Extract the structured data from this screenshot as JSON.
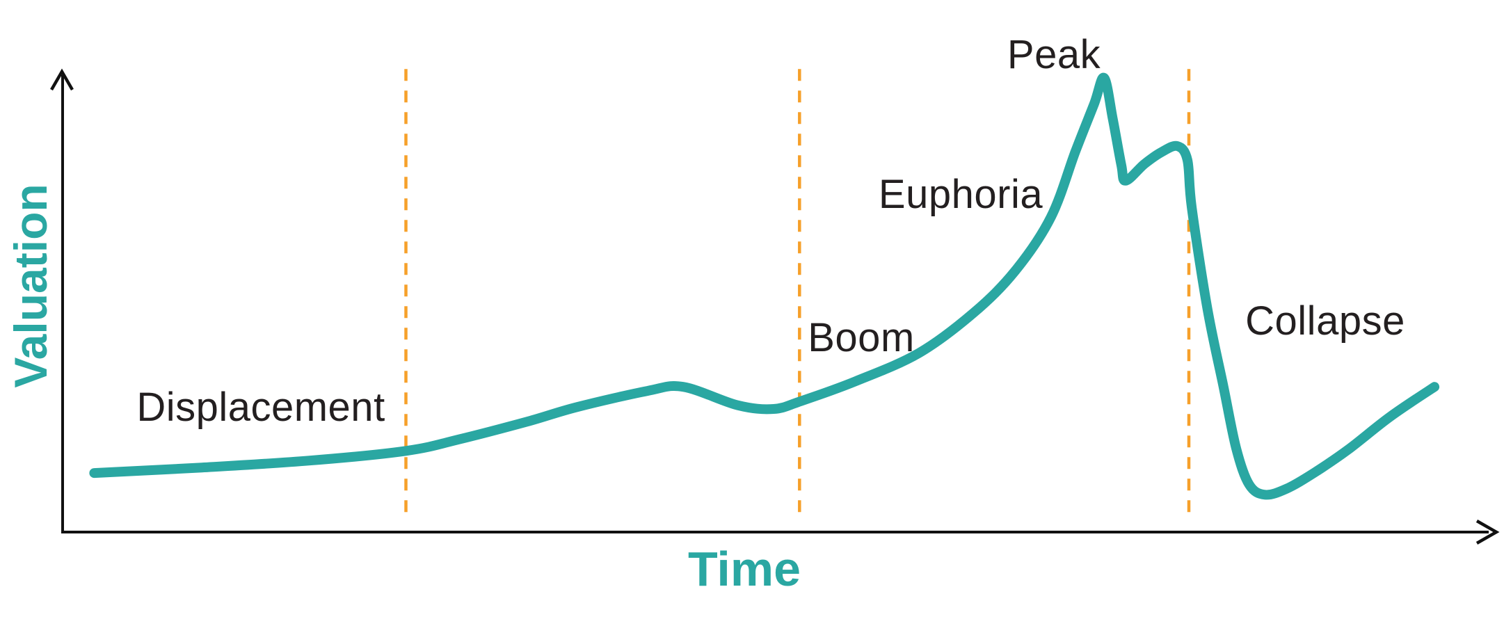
{
  "chart_data": {
    "type": "line",
    "xlabel": "Time",
    "ylabel": "Valuation",
    "x_range": [
      0,
      100
    ],
    "y_range": [
      0,
      100
    ],
    "grid": false,
    "legend": "none",
    "axis_color": "#111111",
    "background_color": "#ffffff",
    "series": [
      {
        "name": "valuation_curve",
        "color": "#2aa7a2",
        "stroke_width": 14,
        "points": [
          [
            2.2,
            12.8
          ],
          [
            9.7,
            14.0
          ],
          [
            17.2,
            15.5
          ],
          [
            23.9,
            17.6
          ],
          [
            27.6,
            20.1
          ],
          [
            32.4,
            24.0
          ],
          [
            35.8,
            27.1
          ],
          [
            40.7,
            30.6
          ],
          [
            43.2,
            31.5
          ],
          [
            47.0,
            27.5
          ],
          [
            49.5,
            26.7
          ],
          [
            51.4,
            28.4
          ],
          [
            55.2,
            32.7
          ],
          [
            59.6,
            38.8
          ],
          [
            63.4,
            47.5
          ],
          [
            66.3,
            56.6
          ],
          [
            68.8,
            68.3
          ],
          [
            70.5,
            82.5
          ],
          [
            71.8,
            92.8
          ],
          [
            72.5,
            98.5
          ],
          [
            73.1,
            89.7
          ],
          [
            73.7,
            79.6
          ],
          [
            74.0,
            76.2
          ],
          [
            75.3,
            79.8
          ],
          [
            76.5,
            82.4
          ],
          [
            77.6,
            83.7
          ],
          [
            78.3,
            80.7
          ],
          [
            78.6,
            70.4
          ],
          [
            79.7,
            48.3
          ],
          [
            80.8,
            31.7
          ],
          [
            81.7,
            18.1
          ],
          [
            82.6,
            10.3
          ],
          [
            83.7,
            8.1
          ],
          [
            85.2,
            9.4
          ],
          [
            87.1,
            12.8
          ],
          [
            89.5,
            17.9
          ],
          [
            92.4,
            25.0
          ],
          [
            95.5,
            31.5
          ]
        ]
      }
    ],
    "phase_boundaries": {
      "color": "#f6a02a",
      "stroke_width": 4.5,
      "dash_pattern": "17 14",
      "t_values": [
        23.9,
        51.3,
        78.4
      ],
      "v_top": 100.4,
      "v_bottom": 3.0
    },
    "annotations": [
      {
        "text": "Displacement",
        "t": 13.8,
        "v": 27.0
      },
      {
        "text": "Boom",
        "t": 55.6,
        "v": 42.1
      },
      {
        "text": "Euphoria",
        "t": 62.5,
        "v": 73.2
      },
      {
        "text": "Peak",
        "t": 69.0,
        "v": 103.5
      },
      {
        "text": "Collapse",
        "t": 87.9,
        "v": 45.7
      }
    ],
    "annotation_color": "#231f20",
    "label_accent_color": "#2aa7a2"
  }
}
